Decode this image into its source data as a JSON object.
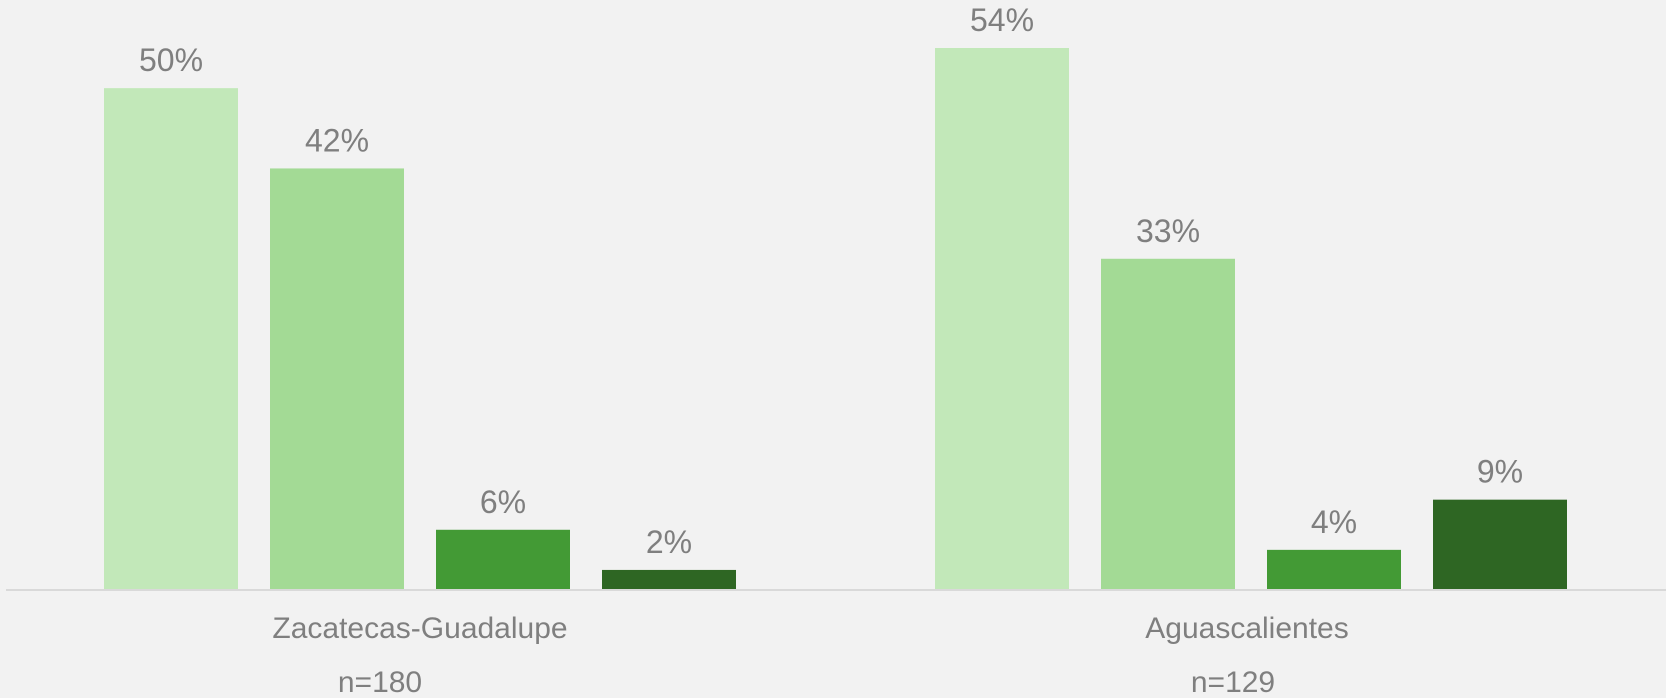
{
  "chart_data": {
    "type": "bar",
    "categories": [
      "Zacatecas-Guadalupe",
      "Aguascalientes"
    ],
    "category_sublabels": [
      "n=180",
      "n=129"
    ],
    "series_colors": [
      "#c2e8b9",
      "#a3da95",
      "#439a35",
      "#2e6623"
    ],
    "groups": [
      {
        "values": [
          50,
          42,
          6,
          2
        ],
        "labels": [
          "50%",
          "42%",
          "6%",
          "2%"
        ]
      },
      {
        "values": [
          54,
          33,
          4,
          9
        ],
        "labels": [
          "54%",
          "33%",
          "4%",
          "9%"
        ]
      }
    ],
    "ylim": [
      0,
      54
    ],
    "grid": false,
    "legend": "none"
  }
}
